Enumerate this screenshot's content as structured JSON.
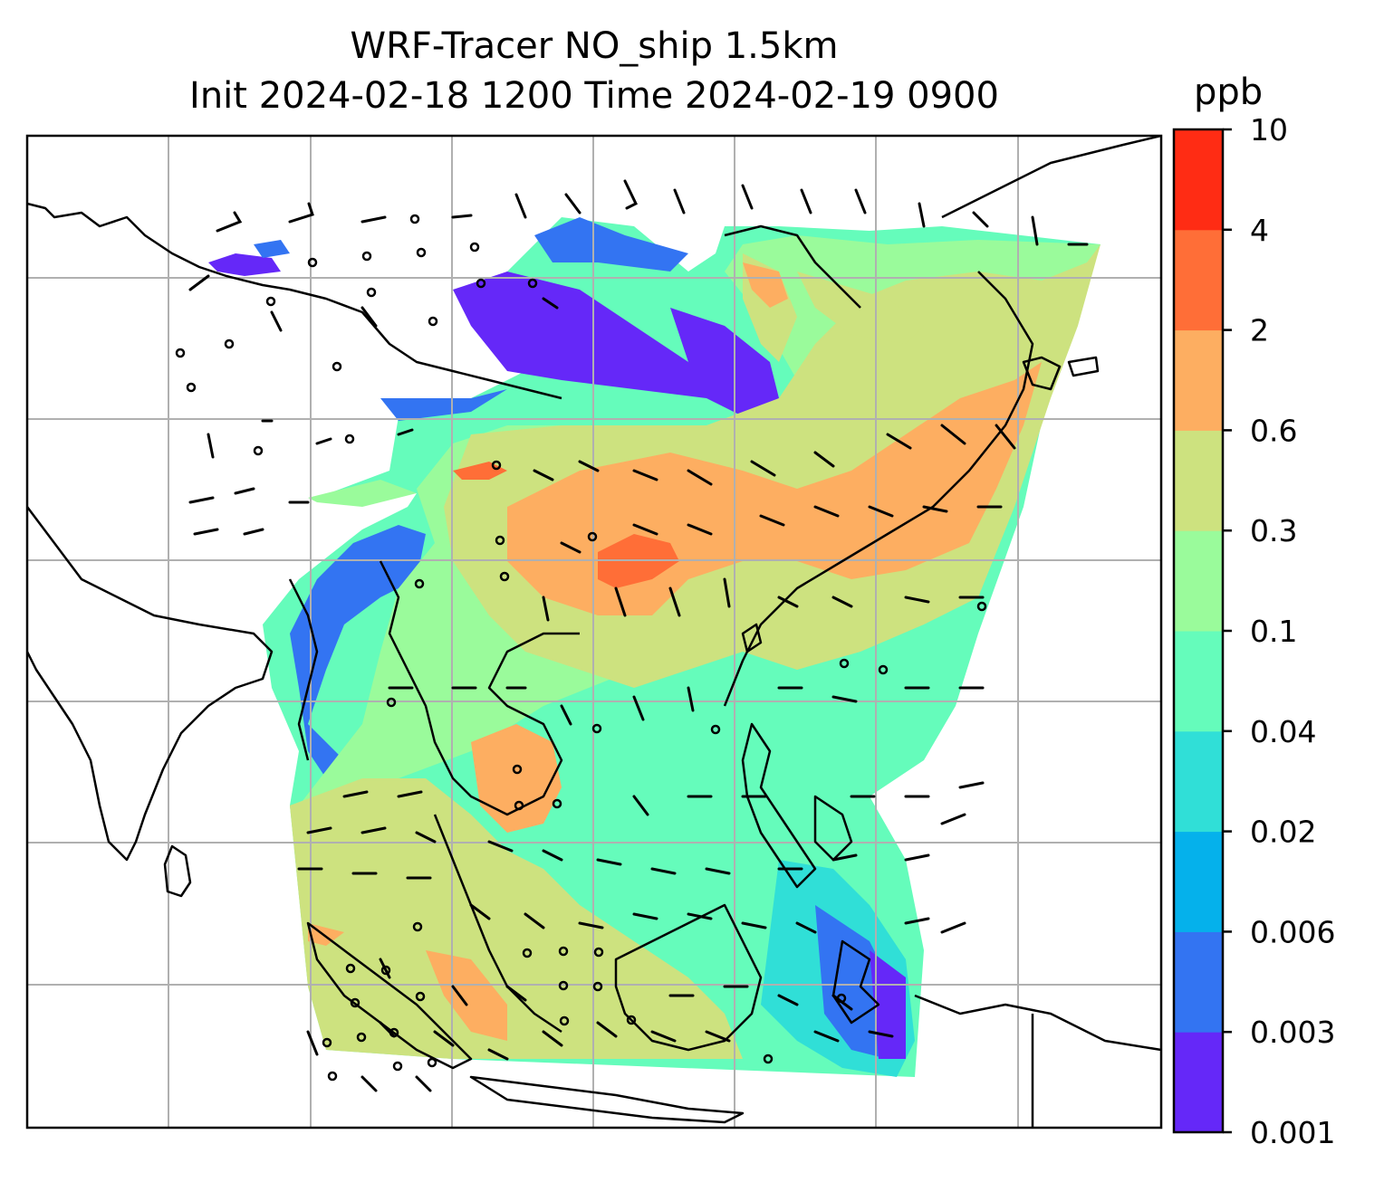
{
  "title": {
    "line1": "WRF-Tracer NO_ship 1.5km",
    "line2": "Init 2024-02-18 1200 Time 2024-02-19 0900"
  },
  "colorbar": {
    "unit": "ppb",
    "levels": [
      "0.001",
      "0.003",
      "0.006",
      "0.02",
      "0.04",
      "0.1",
      "0.3",
      "0.6",
      "2",
      "4",
      "10"
    ],
    "colors": [
      "#6528f8",
      "#3374f2",
      "#05b1eb",
      "#30dfd7",
      "#65fcbb",
      "#9afb9b",
      "#cde27f",
      "#fdae61",
      "#ff6e37",
      "#ff2c14"
    ]
  },
  "map": {
    "gridlines": true,
    "gridline_color": "#b0b0b0",
    "coastline_color": "#000000",
    "wind_barbs_color": "#000000"
  }
}
